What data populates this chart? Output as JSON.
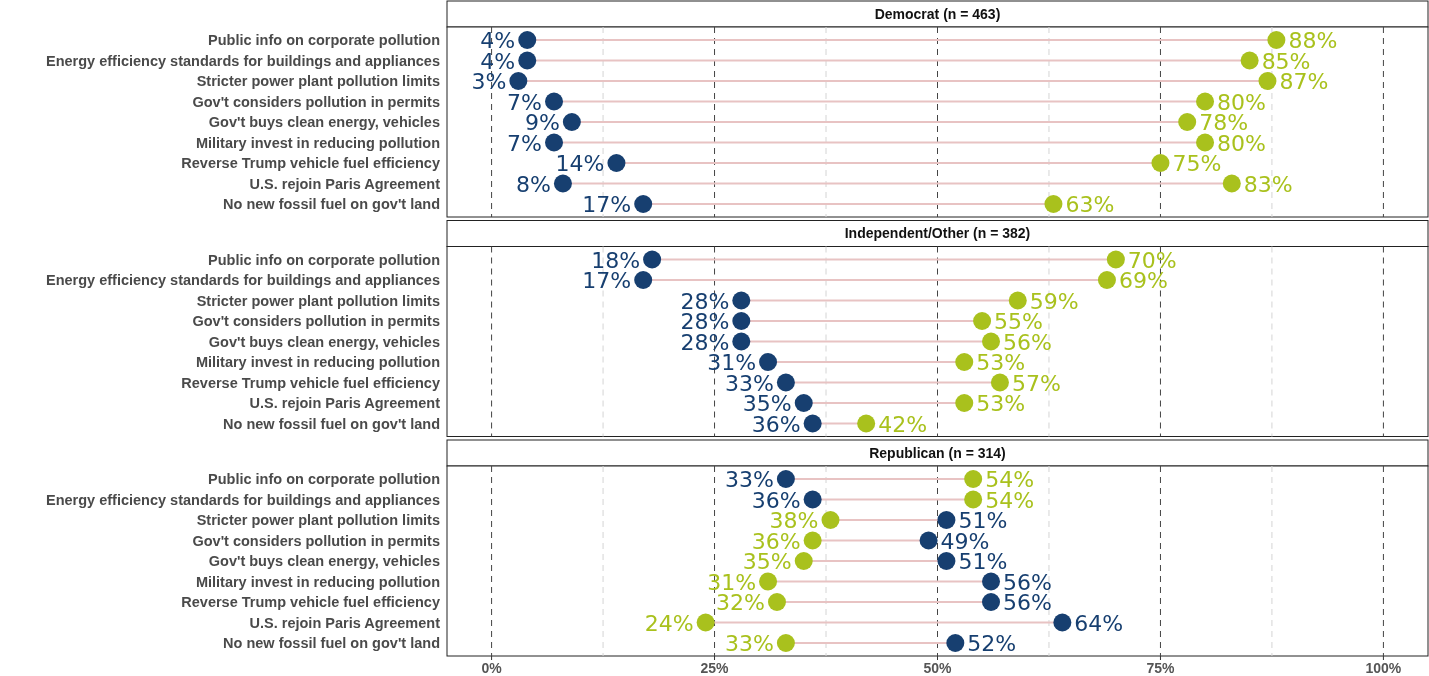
{
  "chart_data": [
    {
      "type": "scatter",
      "orientation": "horizontal",
      "title": "Democrat (n = 463)",
      "categories": [
        "Public info on corporate pollution",
        "Energy efficiency standards for buildings and appliances",
        "Stricter power plant pollution limits",
        "Gov't considers pollution in permits",
        "Gov't buys clean energy, vehicles",
        "Military invest in reducing pollution",
        "Reverse Trump vehicle fuel efficiency",
        "U.S. rejoin Paris Agreement",
        "No new fossil fuel on gov't land"
      ],
      "series": [
        {
          "color": "#173f70",
          "values": [
            4,
            4,
            3,
            7,
            9,
            7,
            14,
            8,
            17
          ],
          "value_labels": [
            "4%",
            "4%",
            "3%",
            "7%",
            "9%",
            "7%",
            "14%",
            "8%",
            "17%"
          ]
        },
        {
          "color": "#a9c11d",
          "values": [
            88,
            85,
            87,
            80,
            78,
            80,
            75,
            83,
            63
          ],
          "value_labels": [
            "88%",
            "85%",
            "87%",
            "80%",
            "78%",
            "80%",
            "75%",
            "83%",
            "63%"
          ]
        }
      ],
      "xlim": [
        -5,
        105
      ],
      "xticks": [
        {
          "value": 0,
          "label": null
        },
        {
          "value": 25,
          "label": null
        },
        {
          "value": 50,
          "label": null
        },
        {
          "value": 75,
          "label": null
        },
        {
          "value": 100,
          "label": null
        }
      ],
      "grid": "x",
      "marker": "circle",
      "tick_labels": "y"
    },
    {
      "type": "scatter",
      "orientation": "horizontal",
      "title": "Independent/Other (n = 382)",
      "categories": [
        "Public info on corporate pollution",
        "Energy efficiency standards for buildings and appliances",
        "Stricter power plant pollution limits",
        "Gov't considers pollution in permits",
        "Gov't buys clean energy, vehicles",
        "Military invest in reducing pollution",
        "Reverse Trump vehicle fuel efficiency",
        "U.S. rejoin Paris Agreement",
        "No new fossil fuel on gov't land"
      ],
      "series": [
        {
          "color": "#173f70",
          "values": [
            18,
            17,
            28,
            28,
            28,
            31,
            33,
            35,
            36
          ],
          "value_labels": [
            "18%",
            "17%",
            "28%",
            "28%",
            "28%",
            "31%",
            "33%",
            "35%",
            "36%"
          ]
        },
        {
          "color": "#a9c11d",
          "values": [
            70,
            69,
            59,
            55,
            56,
            53,
            57,
            53,
            42
          ],
          "value_labels": [
            "70%",
            "69%",
            "59%",
            "55%",
            "56%",
            "53%",
            "57%",
            "53%",
            "42%"
          ]
        }
      ],
      "xlim": [
        -5,
        105
      ],
      "xticks": [
        {
          "value": 0,
          "label": null
        },
        {
          "value": 25,
          "label": null
        },
        {
          "value": 50,
          "label": null
        },
        {
          "value": 75,
          "label": null
        },
        {
          "value": 100,
          "label": null
        }
      ],
      "grid": "x",
      "marker": "circle",
      "tick_labels": "y"
    },
    {
      "type": "scatter",
      "orientation": "horizontal",
      "title": "Republican (n = 314)",
      "categories": [
        "Public info on corporate pollution",
        "Energy efficiency standards for buildings and appliances",
        "Stricter power plant pollution limits",
        "Gov't considers pollution in permits",
        "Gov't buys clean energy, vehicles",
        "Military invest in reducing pollution",
        "Reverse Trump vehicle fuel efficiency",
        "U.S. rejoin Paris Agreement",
        "No new fossil fuel on gov't land"
      ],
      "series": [
        {
          "color": "#173f70",
          "values": [
            33,
            36,
            51,
            49,
            51,
            56,
            56,
            64,
            52
          ],
          "value_labels": [
            "33%",
            "36%",
            "51%",
            "49%",
            "51%",
            "56%",
            "56%",
            "64%",
            "52%"
          ]
        },
        {
          "color": "#a9c11d",
          "values": [
            54,
            54,
            38,
            36,
            35,
            31,
            32,
            24,
            33
          ],
          "value_labels": [
            "54%",
            "54%",
            "38%",
            "36%",
            "35%",
            "31%",
            "32%",
            "24%",
            "33%"
          ]
        }
      ],
      "xlim": [
        -5,
        105
      ],
      "xticks": [
        {
          "value": 0,
          "label": "0%"
        },
        {
          "value": 25,
          "label": "25%"
        },
        {
          "value": 50,
          "label": "50%"
        },
        {
          "value": 75,
          "label": "75%"
        },
        {
          "value": 100,
          "label": "100%"
        }
      ],
      "grid": "x",
      "marker": "circle"
    }
  ]
}
